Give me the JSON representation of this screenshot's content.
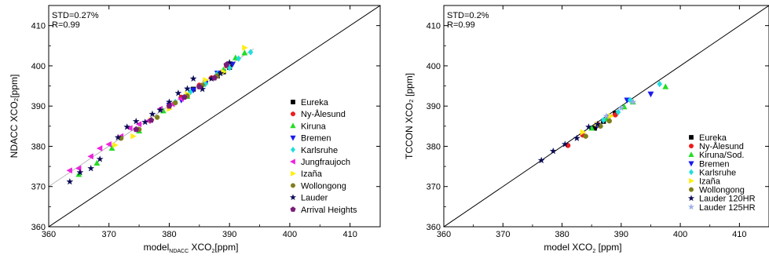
{
  "chart_data": [
    {
      "type": "scatter",
      "stats": [
        "STD=0.27%",
        "R=0.99"
      ],
      "ylabel": "NDACC XCO₂[ppm]",
      "xlabel": {
        "prefix": "model",
        "sub": "NDACC",
        "mid": " XCO",
        "sub2": "2",
        "suffix": "[ppm]"
      },
      "xlim": [
        360,
        415
      ],
      "ylim": [
        360,
        415
      ],
      "xticks": [
        360,
        370,
        380,
        390,
        400,
        410
      ],
      "yticks": [
        360,
        370,
        380,
        390,
        400,
        410
      ],
      "grid": false,
      "legend_position": "bottom-right",
      "reference_lines": [
        {
          "kind": "one-to-one",
          "color": "#000000",
          "from": [
            360,
            360
          ],
          "to": [
            415,
            415
          ]
        },
        {
          "kind": "fit",
          "color": "#aaaaaa",
          "from": [
            360,
            370
          ],
          "to": [
            394,
            404.2
          ]
        }
      ],
      "series": [
        {
          "name": "Eureka",
          "marker": "square",
          "color": "#000000",
          "x": [
            384,
            386,
            388,
            389,
            390
          ],
          "y": [
            394.2,
            396,
            397.5,
            398.5,
            399.6
          ]
        },
        {
          "name": "Ny-Ålesund",
          "marker": "circle",
          "color": "#ee1c1c",
          "x": [
            382,
            385,
            387,
            389.5
          ],
          "y": [
            392.2,
            395.2,
            397,
            400
          ]
        },
        {
          "name": "Kiruna",
          "marker": "triangle-up",
          "color": "#22dd22",
          "x": [
            365,
            368,
            370.5,
            375,
            379,
            383,
            386,
            389,
            391,
            392.5
          ],
          "y": [
            373,
            375.8,
            379.5,
            383.8,
            388.8,
            392.4,
            396,
            399,
            402,
            403.2
          ]
        },
        {
          "name": "Bremen",
          "marker": "triangle-down",
          "color": "#1a1aee",
          "x": [
            380,
            382,
            384,
            386,
            388,
            390.5
          ],
          "y": [
            390.2,
            391.5,
            394,
            395.6,
            398.2,
            400.4
          ]
        },
        {
          "name": "Karlsruhe",
          "marker": "diamond",
          "color": "#22dddd",
          "x": [
            381,
            383.5,
            386,
            388,
            390,
            391.5,
            393.5
          ],
          "y": [
            391,
            393.5,
            395.5,
            398,
            399.5,
            401.8,
            403.4
          ]
        },
        {
          "name": "Jungfraujoch",
          "marker": "triangle-left",
          "color": "#ee22dd",
          "x": [
            363.5,
            365,
            367,
            368.5,
            370,
            372,
            373.5,
            375,
            376.5,
            378.5,
            380.5,
            382
          ],
          "y": [
            374,
            374.5,
            377.5,
            379.5,
            380.5,
            382.5,
            384.5,
            385.5,
            386.3,
            389.3,
            390.5,
            391.8
          ]
        },
        {
          "name": "Izaña",
          "marker": "triangle-right",
          "color": "#ffee11",
          "x": [
            371,
            374,
            377,
            380,
            383,
            386,
            389,
            392.5
          ],
          "y": [
            380.3,
            382.5,
            386.5,
            389.3,
            393,
            396.5,
            398.5,
            404.5
          ]
        },
        {
          "name": "Wollongong",
          "marker": "circle",
          "color": "#7f7f1a",
          "x": [
            372,
            375,
            378,
            381,
            383,
            385.5,
            388
          ],
          "y": [
            382,
            384.2,
            387.2,
            390.8,
            392.5,
            395.2,
            397.5
          ]
        },
        {
          "name": "Lauder",
          "marker": "star",
          "color": "#0a0a55",
          "x": [
            363.5,
            365.2,
            367,
            368.5,
            371.5,
            373,
            374.5,
            376,
            377.2,
            378.5,
            380,
            381.5,
            383,
            384,
            385.5,
            387,
            388.5,
            390
          ],
          "y": [
            371.2,
            373.5,
            374.5,
            376.8,
            382.2,
            384.8,
            386.2,
            386,
            388,
            389,
            391,
            393.2,
            394.3,
            396.8,
            394.2,
            396.8,
            398.1,
            400.8
          ]
        },
        {
          "name": "Arrival Heights",
          "marker": "pentagon",
          "color": "#7a1a7a",
          "x": [
            374.5,
            377,
            380,
            382.5,
            385,
            387.5,
            389.5
          ],
          "y": [
            384.2,
            386.5,
            390,
            392.2,
            394.8,
            397,
            400.3
          ]
        }
      ]
    },
    {
      "type": "scatter",
      "stats": [
        "STD=0.2%",
        "R=0.99"
      ],
      "ylabel": "TCCON XCO₂ [ppm]",
      "xlabel": {
        "prefix": "model XCO",
        "sub": "2",
        "suffix": " [ppm]"
      },
      "xlim": [
        360,
        415
      ],
      "ylim": [
        360,
        415
      ],
      "xticks": [
        360,
        370,
        380,
        390,
        400,
        410
      ],
      "yticks": [
        360,
        370,
        380,
        390,
        400,
        410
      ],
      "grid": false,
      "legend_position": "bottom-right",
      "reference_lines": [
        {
          "kind": "one-to-one",
          "color": "#000000",
          "from": [
            360,
            360
          ],
          "to": [
            415,
            415
          ]
        }
      ],
      "series": [
        {
          "name": "Eureka",
          "marker": "square",
          "color": "#000000",
          "x": [
            385.5,
            387,
            389
          ],
          "y": [
            384.5,
            386.2,
            388.2
          ]
        },
        {
          "name": "Ny-Ålesund",
          "marker": "circle",
          "color": "#ee1c1c",
          "x": [
            381,
            383.5,
            386,
            389
          ],
          "y": [
            380.2,
            382.8,
            385.5,
            387.8
          ]
        },
        {
          "name": "Kiruna/Sod.",
          "marker": "triangle-up",
          "color": "#22dd22",
          "x": [
            385,
            387.5,
            390.5,
            392,
            397.5
          ],
          "y": [
            384.5,
            386.8,
            389.8,
            391,
            394.8
          ]
        },
        {
          "name": "Bremen",
          "marker": "triangle-down",
          "color": "#1a1aee",
          "x": [
            386,
            388,
            391,
            395
          ],
          "y": [
            385.2,
            387.3,
            391.5,
            393
          ]
        },
        {
          "name": "Karlsruhe",
          "marker": "diamond",
          "color": "#22dddd",
          "x": [
            387,
            389.5,
            391.5,
            396.5
          ],
          "y": [
            386.5,
            388.5,
            391.5,
            395.5
          ]
        },
        {
          "name": "Izaña",
          "marker": "triangle-right",
          "color": "#ffee11",
          "x": [
            383.5,
            386,
            388.2
          ],
          "y": [
            383.5,
            385.5,
            387.5
          ]
        },
        {
          "name": "Wollongong",
          "marker": "circle",
          "color": "#7f7f1a",
          "x": [
            384,
            386.5,
            388
          ],
          "y": [
            382.5,
            385,
            386.3
          ]
        },
        {
          "name": "Lauder 120HR",
          "marker": "star",
          "color": "#0a0a55",
          "x": [
            376.5,
            378.5,
            380.5,
            382.5,
            384.5,
            386
          ],
          "y": [
            376.5,
            378.8,
            380.5,
            382,
            384.8,
            385.5
          ]
        },
        {
          "name": "Lauder 125HR",
          "marker": "star",
          "color": "#9aaee6",
          "x": [
            387.5,
            390,
            392
          ],
          "y": [
            387.5,
            389.5,
            391
          ]
        }
      ]
    }
  ]
}
